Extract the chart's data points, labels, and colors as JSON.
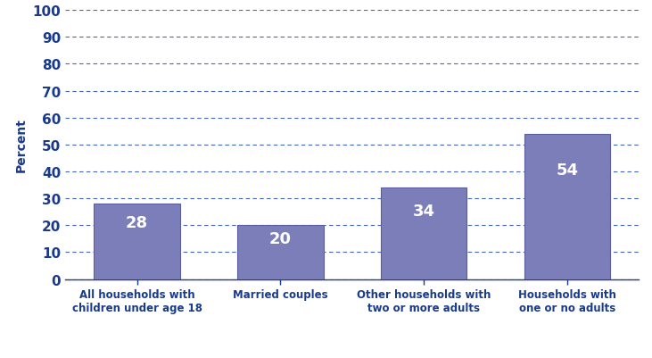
{
  "categories": [
    "All households with\nchildren under age 18",
    "Married couples",
    "Other households with\ntwo or more adults",
    "Households with\none or no adults"
  ],
  "values": [
    28,
    20,
    34,
    54
  ],
  "bar_color": "#7b7eb8",
  "bar_edge_color": "#5a5d9e",
  "label_color": "#ffffff",
  "label_fontsize": 13,
  "ylabel": "Percent",
  "ylabel_color": "#1a3a8c",
  "ytick_color": "#1a3a8c",
  "xtick_color": "#1a3a8c",
  "ylim": [
    0,
    100
  ],
  "yticks": [
    0,
    10,
    20,
    30,
    40,
    50,
    60,
    70,
    80,
    90,
    100
  ],
  "grid_color": "#4466bb",
  "grid_linewidth": 0.8,
  "background_color": "#ffffff",
  "bar_width": 0.6,
  "ytick_fontsize": 11,
  "xtick_fontsize": 8.5
}
